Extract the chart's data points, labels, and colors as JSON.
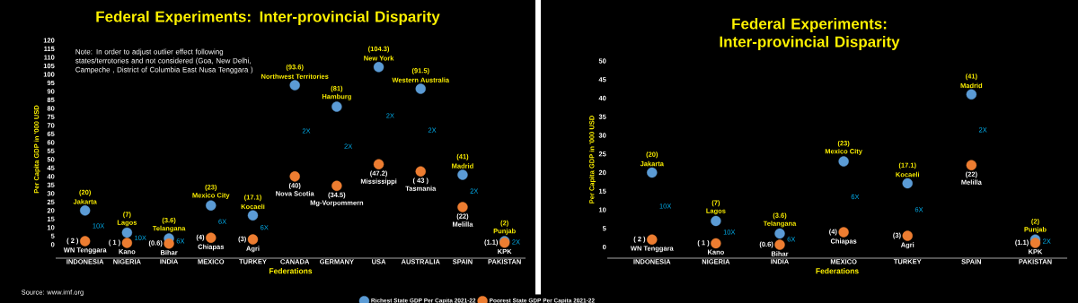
{
  "chart_data": [
    {
      "type": "scatter",
      "title": "Federal Experiments: Inter-provincial Disparity",
      "xlabel": "Federations",
      "ylabel": "Per Capita GDP in '000 USD",
      "categories": [
        "INDONESIA",
        "NIGERIA",
        "INDIA",
        "MEXICO",
        "TURKEY",
        "CANADA",
        "GERMANY",
        "USA",
        "AUSTRALIA",
        "SPAIN",
        "PAKISTAN"
      ],
      "series": [
        {
          "name": "Richest State GDP Per Capita 2021-22",
          "color": "#5b9bd5",
          "values": [
            20,
            7,
            3.6,
            23,
            17.1,
            93.6,
            81,
            104.3,
            91.5,
            41,
            2
          ],
          "value_labels": [
            "(20)",
            "(7)",
            "(3.6)",
            "(23)",
            "(17.1)",
            "(93.6)",
            "(81)",
            "(104.3)",
            "(91.5)",
            "(41)",
            "(2)"
          ]
        },
        {
          "name": "Poorest State GDP Per Capita 2021-22",
          "color": "#ed7d31",
          "values": [
            2,
            1,
            0.6,
            4,
            3,
            40,
            34.5,
            47.2,
            43,
            22,
            1.1
          ],
          "value_labels": [
            "( 2 )",
            "( 1 )",
            "(0.6)",
            "(4)",
            "(3)",
            "(40)",
            "(34.5)",
            "(47.2)",
            "( 43 )",
            "(22)",
            "(1.1)"
          ]
        }
      ],
      "ylim": [
        -8,
        120
      ],
      "yticks": [
        0,
        5,
        10,
        15,
        20,
        25,
        30,
        35,
        40,
        45,
        50,
        55,
        60,
        65,
        70,
        75,
        80,
        85,
        90,
        95,
        100,
        105,
        110,
        115,
        120
      ],
      "legend": "bottom",
      "annotations": [
        "10X",
        "10X",
        "6X",
        "6X",
        "6X",
        "2X",
        "2X",
        "2X",
        "2X",
        "2X",
        "2X",
        "Note: In order to adjust outlier effect following states/terrotories and not considered (Goa, New Delhi,  Campeche , District of Columbia   East Nusa Tenggara )",
        "Source: www.imf.org",
        {
          "text": "Jakarta",
          "x": "INDONESIA",
          "y": 20
        },
        {
          "text": "WN Tenggara",
          "x": "INDONESIA",
          "y": 2
        },
        {
          "text": "Lagos",
          "x": "NIGERIA",
          "y": 7
        },
        {
          "text": "Kano",
          "x": "NIGERIA",
          "y": 1
        },
        {
          "text": "Telangana",
          "x": "INDIA",
          "y": 3.6
        },
        {
          "text": "Bihar",
          "x": "INDIA",
          "y": 0.6
        },
        {
          "text": "Mexico City",
          "x": "MEXICO",
          "y": 23
        },
        {
          "text": "Chiapas",
          "x": "MEXICO",
          "y": 4
        },
        {
          "text": "Kocaeli",
          "x": "TURKEY",
          "y": 17.1
        },
        {
          "text": "Agri",
          "x": "TURKEY",
          "y": 3
        },
        {
          "text": "Northwest Territories",
          "x": "CANADA",
          "y": 93.6
        },
        {
          "text": "Nova Scotia",
          "x": "CANADA",
          "y": 40
        },
        {
          "text": "Hamburg",
          "x": "GERMANY",
          "y": 81
        },
        {
          "text": "Mg-Vorpommern",
          "x": "GERMANY",
          "y": 34.5
        },
        {
          "text": "New York",
          "x": "USA",
          "y": 104.3
        },
        {
          "text": "Mississippi",
          "x": "USA",
          "y": 47.2
        },
        {
          "text": "Western Australia",
          "x": "AUSTRALIA",
          "y": 91.5
        },
        {
          "text": "Tasmania",
          "x": "AUSTRALIA",
          "y": 43
        },
        {
          "text": "Madrid",
          "x": "SPAIN",
          "y": 41
        },
        {
          "text": "Melilla",
          "x": "SPAIN",
          "y": 22
        },
        {
          "text": "Punjab",
          "x": "PAKISTAN",
          "y": 2
        },
        {
          "text": "KPK",
          "x": "PAKISTAN",
          "y": 1.1
        }
      ]
    },
    {
      "type": "scatter",
      "title": "Federal Experiments: Inter-provincial Disparity",
      "xlabel": "Federations",
      "ylabel": "Per Capita GDP in '000 USD",
      "categories": [
        "INDONESIA",
        "NIGERIA",
        "INDIA",
        "MEXICO",
        "TURKEY",
        "SPAIN",
        "PAKISTAN"
      ],
      "series": [
        {
          "color": "#5b9bd5",
          "values": [
            20,
            7,
            3.6,
            23,
            17.1,
            41,
            2
          ],
          "value_labels": [
            "(20)",
            "(7)",
            "(3.6)",
            "(23)",
            "(17.1)",
            "(41)",
            "(2)"
          ]
        },
        {
          "color": "#ed7d31",
          "values": [
            2,
            1,
            0.6,
            4,
            3,
            22,
            1.1
          ],
          "value_labels": [
            "( 2 )",
            "( 1 )",
            "(0.6)",
            "(4)",
            "(3)",
            "(22)",
            "(1.1)"
          ]
        }
      ],
      "ylim": [
        -3,
        50
      ],
      "yticks": [
        0,
        5,
        10,
        15,
        20,
        25,
        30,
        35,
        40,
        45,
        50
      ],
      "annotations": [
        "10X",
        "10X",
        "6X",
        "6X",
        "6X",
        "2X",
        "2X",
        {
          "text": "Jakarta",
          "x": "INDONESIA",
          "y": 20
        },
        {
          "text": "WN Tenggara",
          "x": "INDONESIA",
          "y": 2
        },
        {
          "text": "Lagos",
          "x": "NIGERIA",
          "y": 7
        },
        {
          "text": "Kano",
          "x": "NIGERIA",
          "y": 1
        },
        {
          "text": "Telangana",
          "x": "INDIA",
          "y": 3.6
        },
        {
          "text": "Bihar",
          "x": "INDIA",
          "y": 0.6
        },
        {
          "text": "Mexico City",
          "x": "MEXICO",
          "y": 23
        },
        {
          "text": "Chiapas",
          "x": "MEXICO",
          "y": 4
        },
        {
          "text": "Kocaeli",
          "x": "TURKEY",
          "y": 17.1
        },
        {
          "text": "Agri",
          "x": "TURKEY",
          "y": 3
        },
        {
          "text": "Madrid",
          "x": "SPAIN",
          "y": 41
        },
        {
          "text": "Melilla",
          "x": "SPAIN",
          "y": 22
        },
        {
          "text": "Punjab",
          "x": "PAKISTAN",
          "y": 2
        },
        {
          "text": "KPK",
          "x": "PAKISTAN",
          "y": 1.1
        }
      ]
    }
  ]
}
